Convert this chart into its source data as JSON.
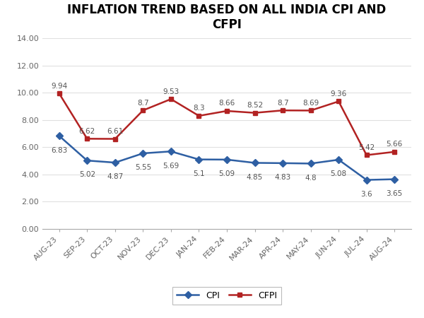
{
  "title": "INFLATION TREND BASED ON ALL INDIA CPI AND\nCFPI",
  "months": [
    "AUG-23",
    "SEP-23",
    "OCT-23",
    "NOV-23",
    "DEC-23",
    "JAN-24",
    "FEB-24",
    "MAR-24",
    "APR-24",
    "MAY-24",
    "JUN-24",
    "JUL-24",
    "AUG-24"
  ],
  "cpi": [
    6.83,
    5.02,
    4.87,
    5.55,
    5.69,
    5.1,
    5.09,
    4.85,
    4.83,
    4.8,
    5.08,
    3.6,
    3.65
  ],
  "cfpi": [
    9.94,
    6.62,
    6.61,
    8.7,
    9.53,
    8.3,
    8.66,
    8.52,
    8.7,
    8.69,
    9.36,
    5.42,
    5.66
  ],
  "cpi_color": "#2E5FA3",
  "cfpi_color": "#B22222",
  "cpi_label": "CPI",
  "cfpi_label": "CFPI",
  "ylim": [
    0,
    14.0
  ],
  "yticks": [
    0.0,
    2.0,
    4.0,
    6.0,
    8.0,
    10.0,
    12.0,
    14.0
  ],
  "background_color": "#FFFFFF",
  "title_fontsize": 12,
  "annotation_fontsize": 7.5,
  "tick_fontsize": 8
}
